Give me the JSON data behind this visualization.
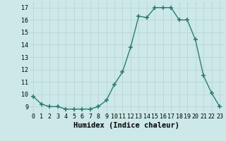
{
  "x": [
    0,
    1,
    2,
    3,
    4,
    5,
    6,
    7,
    8,
    9,
    10,
    11,
    12,
    13,
    14,
    15,
    16,
    17,
    18,
    19,
    20,
    21,
    22,
    23
  ],
  "y": [
    9.8,
    9.2,
    9.0,
    9.0,
    8.8,
    8.8,
    8.8,
    8.8,
    9.0,
    9.5,
    10.8,
    11.8,
    13.8,
    16.3,
    16.2,
    17.0,
    17.0,
    17.0,
    16.0,
    16.0,
    14.4,
    11.5,
    10.1,
    9.0
  ],
  "xlabel": "Humidex (Indice chaleur)",
  "ylim": [
    8.5,
    17.5
  ],
  "xlim": [
    -0.5,
    23.5
  ],
  "yticks": [
    9,
    10,
    11,
    12,
    13,
    14,
    15,
    16,
    17
  ],
  "xticks": [
    0,
    1,
    2,
    3,
    4,
    5,
    6,
    7,
    8,
    9,
    10,
    11,
    12,
    13,
    14,
    15,
    16,
    17,
    18,
    19,
    20,
    21,
    22,
    23
  ],
  "line_color": "#2e7d6e",
  "bg_color": "#cce8e8",
  "grid_color": "#b8d4d4",
  "marker": "+",
  "marker_size": 4.0,
  "line_width": 1.0,
  "xlabel_fontsize": 7.5,
  "tick_fontsize": 6.0
}
